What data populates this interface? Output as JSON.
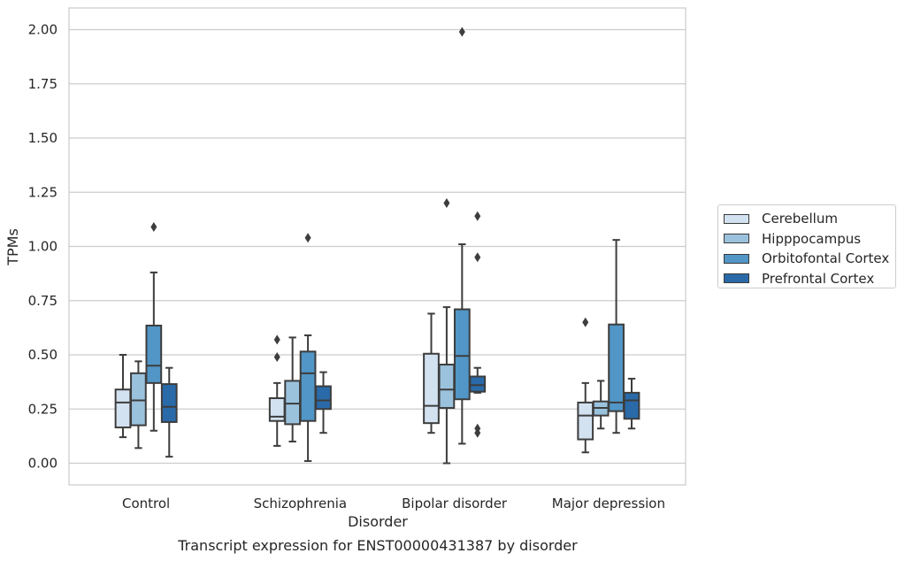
{
  "chart_data": {
    "type": "box",
    "title": "",
    "caption": "Transcript expression for ENST00000431387 by disorder",
    "xlabel": "Disorder",
    "ylabel": "TPMs",
    "ylim": [
      -0.1,
      2.1
    ],
    "yticks": [
      "0.00",
      "0.25",
      "0.50",
      "0.75",
      "1.00",
      "1.25",
      "1.50",
      "1.75",
      "2.00"
    ],
    "grid": true,
    "legend_position": "right",
    "categories": [
      "Control",
      "Schizophrenia",
      "Bipolar disorder",
      "Major depression"
    ],
    "series": [
      {
        "name": "Cerebellum",
        "color": "#d3e2f0",
        "boxes": [
          {
            "whislo": 0.12,
            "q1": 0.165,
            "med": 0.28,
            "q3": 0.34,
            "whishi": 0.5,
            "fliers": []
          },
          {
            "whislo": 0.08,
            "q1": 0.195,
            "med": 0.215,
            "q3": 0.3,
            "whishi": 0.37,
            "fliers": [
              0.49,
              0.57
            ]
          },
          {
            "whislo": 0.14,
            "q1": 0.185,
            "med": 0.265,
            "q3": 0.505,
            "whishi": 0.69,
            "fliers": []
          },
          {
            "whislo": 0.05,
            "q1": 0.11,
            "med": 0.22,
            "q3": 0.28,
            "whishi": 0.37,
            "fliers": [
              0.65
            ]
          }
        ]
      },
      {
        "name": "Hipppocampus",
        "color": "#9bc2dd",
        "boxes": [
          {
            "whislo": 0.07,
            "q1": 0.175,
            "med": 0.29,
            "q3": 0.415,
            "whishi": 0.47,
            "fliers": []
          },
          {
            "whislo": 0.1,
            "q1": 0.18,
            "med": 0.275,
            "q3": 0.38,
            "whishi": 0.58,
            "fliers": []
          },
          {
            "whislo": 0.0,
            "q1": 0.255,
            "med": 0.34,
            "q3": 0.455,
            "whishi": 0.72,
            "fliers": [
              1.2
            ]
          },
          {
            "whislo": 0.16,
            "q1": 0.22,
            "med": 0.255,
            "q3": 0.285,
            "whishi": 0.38,
            "fliers": []
          }
        ]
      },
      {
        "name": "Orbitofontal Cortex",
        "color": "#5196c6",
        "boxes": [
          {
            "whislo": 0.15,
            "q1": 0.37,
            "med": 0.45,
            "q3": 0.635,
            "whishi": 0.88,
            "fliers": [
              1.09
            ]
          },
          {
            "whislo": 0.01,
            "q1": 0.195,
            "med": 0.415,
            "q3": 0.515,
            "whishi": 0.59,
            "fliers": [
              1.04
            ]
          },
          {
            "whislo": 0.09,
            "q1": 0.295,
            "med": 0.495,
            "q3": 0.71,
            "whishi": 1.01,
            "fliers": [
              1.99
            ]
          },
          {
            "whislo": 0.14,
            "q1": 0.24,
            "med": 0.28,
            "q3": 0.64,
            "whishi": 1.03,
            "fliers": []
          }
        ]
      },
      {
        "name": "Prefrontal Cortex",
        "color": "#2a6aa9",
        "boxes": [
          {
            "whislo": 0.03,
            "q1": 0.19,
            "med": 0.26,
            "q3": 0.365,
            "whishi": 0.44,
            "fliers": []
          },
          {
            "whislo": 0.14,
            "q1": 0.25,
            "med": 0.29,
            "q3": 0.355,
            "whishi": 0.42,
            "fliers": []
          },
          {
            "whislo": 0.325,
            "q1": 0.33,
            "med": 0.36,
            "q3": 0.4,
            "whishi": 0.44,
            "fliers": [
              0.14,
              0.16,
              0.95,
              1.14
            ]
          },
          {
            "whislo": 0.16,
            "q1": 0.205,
            "med": 0.29,
            "q3": 0.325,
            "whishi": 0.39,
            "fliers": []
          }
        ]
      }
    ]
  }
}
